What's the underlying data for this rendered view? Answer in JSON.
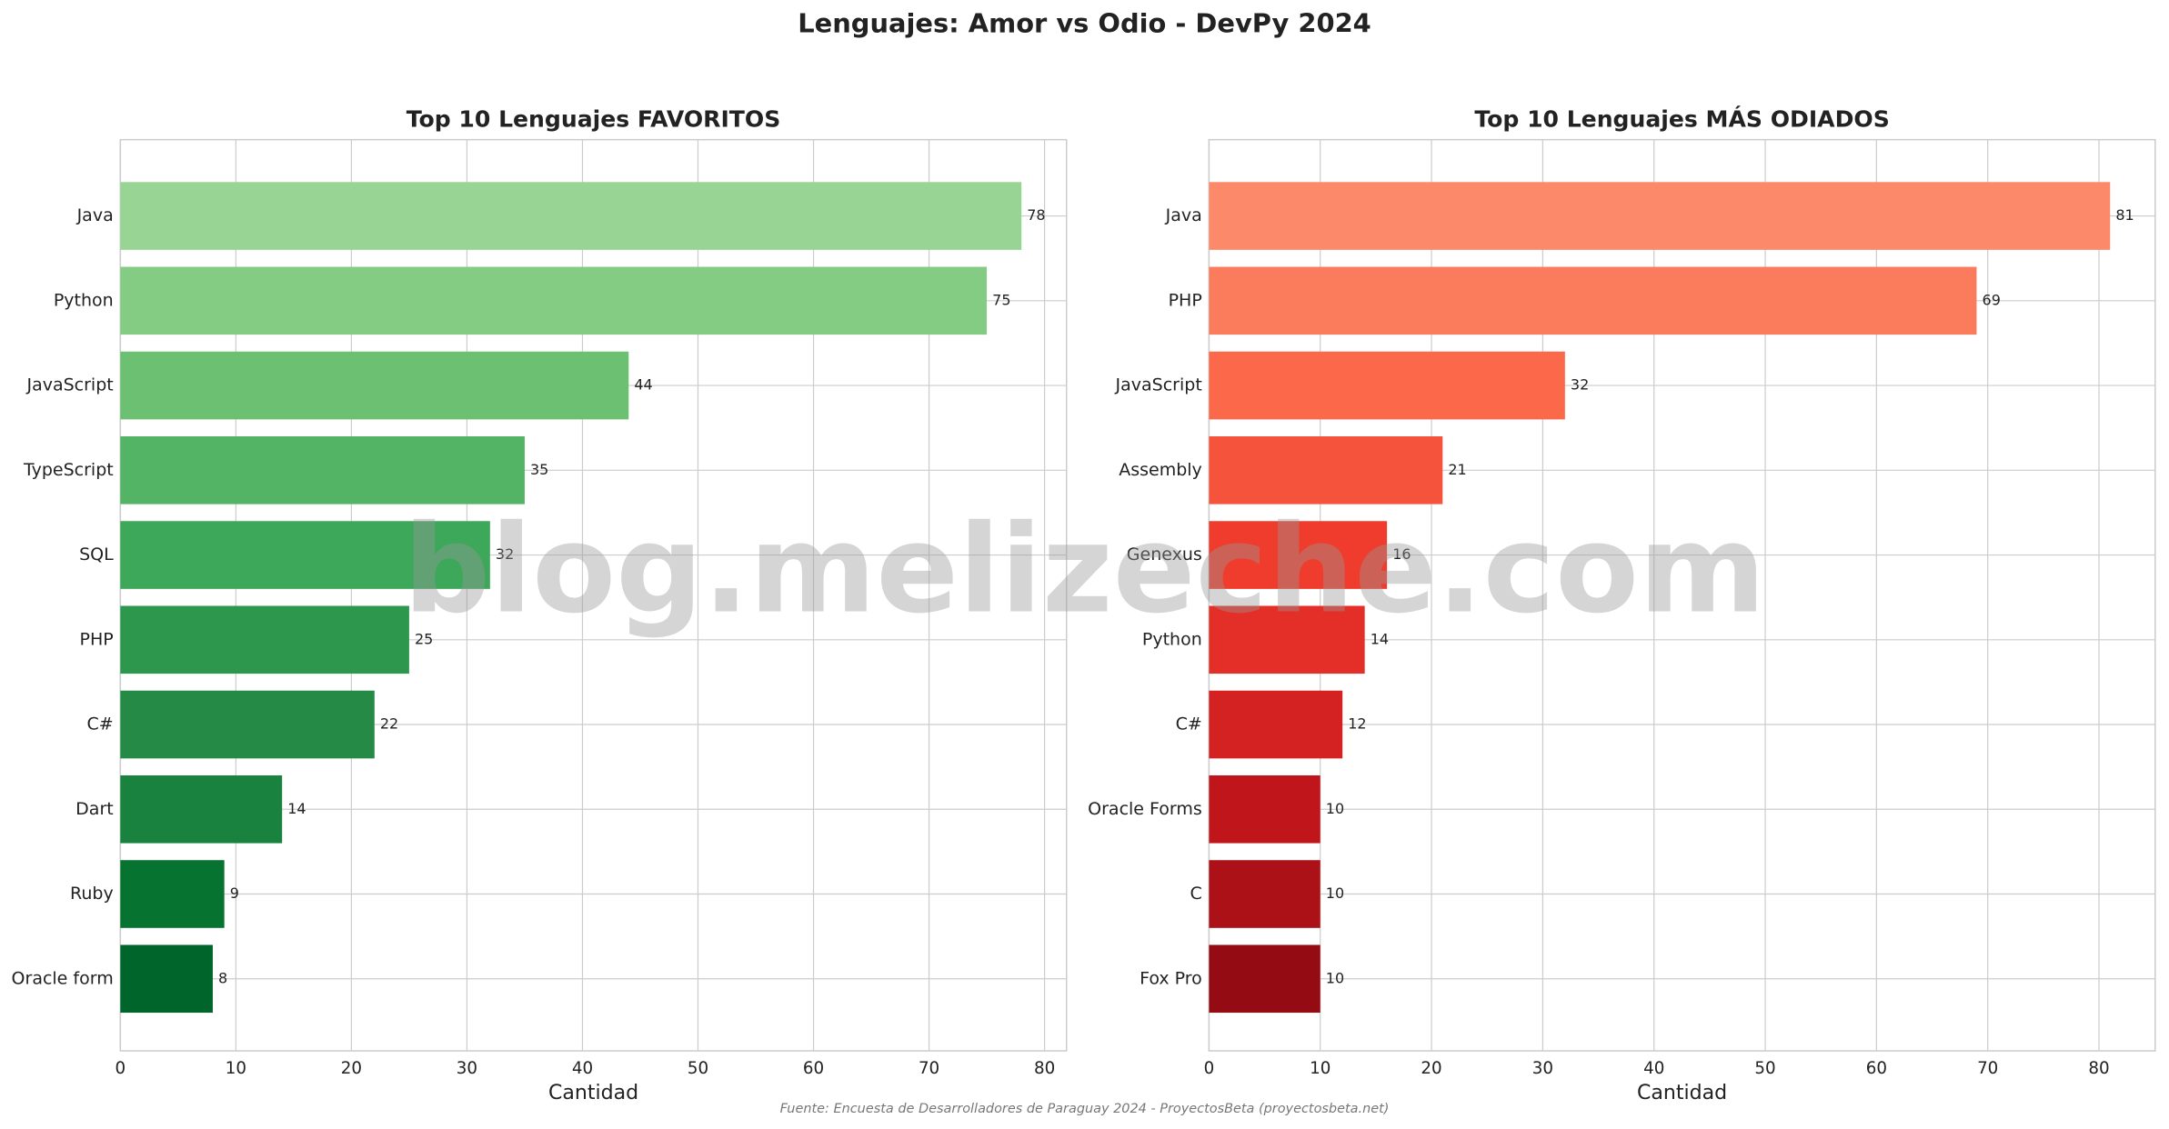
{
  "title": "Lenguajes: Amor vs Odio - DevPy 2024",
  "source": "Fuente: Encuesta de Desarrolladores de Paraguay 2024 - ProyectosBeta (proyectosbeta.net)",
  "watermark": "blog.melizeche.com",
  "chart_data": [
    {
      "type": "barh",
      "title": "Top 10 Lenguajes FAVORITOS",
      "x_label": "Cantidad",
      "categories": [
        "Java",
        "Python",
        "JavaScript",
        "TypeScript",
        "SQL",
        "PHP",
        "C#",
        "Dart",
        "Ruby",
        "Oracle form"
      ],
      "values": [
        78,
        75,
        44,
        35,
        32,
        25,
        22,
        14,
        9,
        8
      ],
      "colors": [
        "#98d594",
        "#84cc83",
        "#6bc072",
        "#53b466",
        "#3da75a",
        "#2e974e",
        "#268a47",
        "#18823e",
        "#077331",
        "#00652b"
      ],
      "xlim": [
        0,
        81.9
      ],
      "xticks": [
        0,
        10,
        20,
        30,
        40,
        50,
        60,
        70,
        80
      ],
      "grid": true
    },
    {
      "type": "barh",
      "title": "Top 10 Lenguajes MÁS ODIADOS",
      "x_label": "Cantidad",
      "categories": [
        "Java",
        "PHP",
        "JavaScript",
        "Assembly",
        "Genexus",
        "Python",
        "C#",
        "Oracle Forms",
        "C",
        "Fox Pro"
      ],
      "values": [
        81,
        69,
        32,
        21,
        16,
        14,
        12,
        10,
        10,
        10
      ],
      "colors": [
        "#fc8a6a",
        "#fb7c5c",
        "#fb694a",
        "#f5533b",
        "#ef3c2c",
        "#e32f27",
        "#d42121",
        "#c0161b",
        "#ac1117",
        "#940b13"
      ],
      "xlim": [
        0,
        85.05
      ],
      "xticks": [
        0,
        10,
        20,
        30,
        40,
        50,
        60,
        70,
        80
      ],
      "grid": true
    }
  ]
}
